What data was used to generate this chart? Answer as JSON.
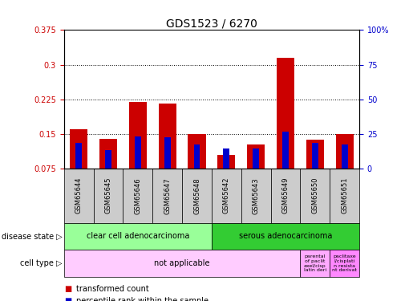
{
  "title": "GDS1523 / 6270",
  "samples": [
    "GSM65644",
    "GSM65645",
    "GSM65646",
    "GSM65647",
    "GSM65648",
    "GSM65642",
    "GSM65643",
    "GSM65649",
    "GSM65650",
    "GSM65651"
  ],
  "transformed_count": [
    0.16,
    0.14,
    0.22,
    0.215,
    0.15,
    0.105,
    0.128,
    0.315,
    0.138,
    0.15
  ],
  "percentile_rank": [
    0.13,
    0.115,
    0.145,
    0.142,
    0.128,
    0.118,
    0.118,
    0.155,
    0.13,
    0.128
  ],
  "ymin": 0.075,
  "ymax": 0.375,
  "yticks": [
    0.075,
    0.15,
    0.225,
    0.3,
    0.375
  ],
  "ytick_labels": [
    "0.075",
    "0.15",
    "0.225",
    "0.3",
    "0.375"
  ],
  "y2ticks": [
    0,
    25,
    50,
    75,
    100
  ],
  "y2tick_labels": [
    "0",
    "25",
    "50",
    "75",
    "100%"
  ],
  "bar_color_red": "#cc0000",
  "bar_color_blue": "#0000cc",
  "bar_width": 0.6,
  "disease_state_groups": [
    {
      "label": "clear cell adenocarcinoma",
      "start": 0,
      "end": 4,
      "color": "#99ff99"
    },
    {
      "label": "serous adenocarcinoma",
      "start": 5,
      "end": 9,
      "color": "#33cc33"
    }
  ],
  "cell_type_groups": [
    {
      "label": "not applicable",
      "start": 0,
      "end": 7,
      "color": "#ffccff"
    },
    {
      "label": "parental\nof paclit\naxel/cisp\nlatin deri",
      "start": 8,
      "end": 8,
      "color": "#ffaaff"
    },
    {
      "label": "paclitaxe\nl/cisplati\nn resista\nnt derivat",
      "start": 9,
      "end": 9,
      "color": "#ff88ff"
    }
  ],
  "legend_items": [
    {
      "label": "transformed count",
      "color": "#cc0000"
    },
    {
      "label": "percentile rank within the sample",
      "color": "#0000cc"
    }
  ],
  "bg_sample_labels": "#cccccc",
  "title_fontsize": 10,
  "tick_fontsize": 7,
  "label_fontsize": 7
}
